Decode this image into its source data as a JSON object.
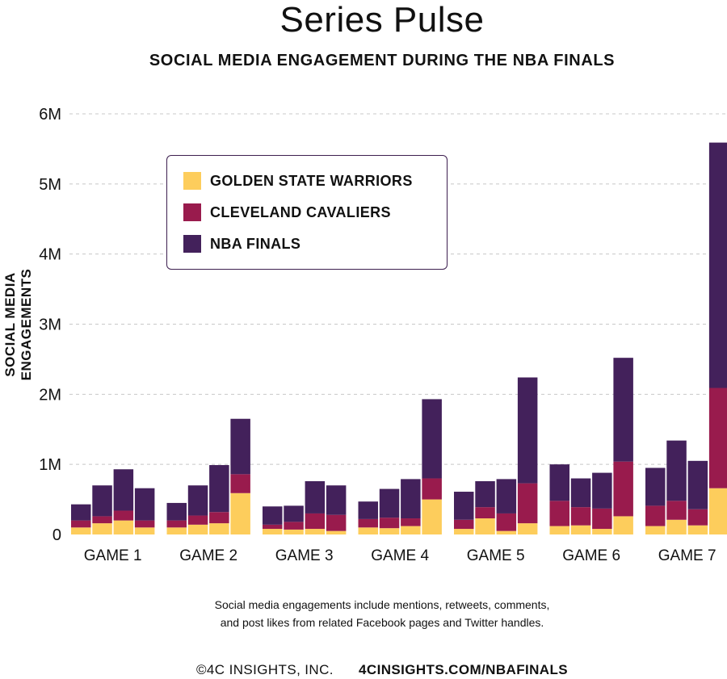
{
  "title": "Series Pulse",
  "subtitle": "SOCIAL MEDIA ENGAGEMENT DURING THE NBA FINALS",
  "footnote_line1": "Social media engagements include mentions, retweets, comments,",
  "footnote_line2": "and post likes from related Facebook pages and Twitter handles.",
  "footer": {
    "copyright": "©4C INSIGHTS, INC.",
    "site": "4CINSIGHTS.COM/NBAFINALS"
  },
  "colors": {
    "warriors": "#FDCD5C",
    "cavaliers": "#991B4D",
    "finals": "#43215B",
    "grid": "#C8C8C8",
    "legend_border": "#3D1F4F"
  },
  "chart_data": {
    "type": "bar",
    "stacked": true,
    "ylabel": "SOCIAL MEDIA ENGAGEMENTS",
    "xlabel": "",
    "ylim": [
      0,
      6000000
    ],
    "yticks": [
      {
        "value": 0,
        "label": "0"
      },
      {
        "value": 1000000,
        "label": "1M"
      },
      {
        "value": 2000000,
        "label": "2M"
      },
      {
        "value": 3000000,
        "label": "3M"
      },
      {
        "value": 4000000,
        "label": "4M"
      },
      {
        "value": 5000000,
        "label": "5M"
      },
      {
        "value": 6000000,
        "label": "6M"
      }
    ],
    "grid": true,
    "legend_position": "top-left",
    "categories": [
      "GAME 1",
      "GAME 2",
      "GAME 3",
      "GAME 4",
      "GAME 5",
      "GAME 6",
      "GAME 7"
    ],
    "bars_per_category": 4,
    "series": [
      {
        "name": "GOLDEN STATE WARRIORS",
        "color_key": "warriors",
        "values": [
          [
            100000,
            160000,
            200000,
            100000
          ],
          [
            100000,
            140000,
            160000,
            590000
          ],
          [
            80000,
            70000,
            80000,
            50000
          ],
          [
            100000,
            90000,
            120000,
            500000
          ],
          [
            80000,
            230000,
            50000,
            160000
          ],
          [
            120000,
            130000,
            80000,
            260000
          ],
          [
            120000,
            210000,
            130000,
            660000
          ]
        ]
      },
      {
        "name": "CLEVELAND CAVALIERS",
        "color_key": "cavaliers",
        "values": [
          [
            100000,
            100000,
            140000,
            100000
          ],
          [
            100000,
            130000,
            160000,
            270000
          ],
          [
            60000,
            110000,
            220000,
            230000
          ],
          [
            120000,
            150000,
            110000,
            300000
          ],
          [
            130000,
            160000,
            250000,
            570000
          ],
          [
            360000,
            260000,
            290000,
            780000
          ],
          [
            290000,
            270000,
            230000,
            1430000
          ]
        ]
      },
      {
        "name": "NBA FINALS",
        "color_key": "finals",
        "values": [
          [
            230000,
            440000,
            590000,
            460000
          ],
          [
            250000,
            430000,
            670000,
            790000
          ],
          [
            260000,
            230000,
            460000,
            420000
          ],
          [
            250000,
            410000,
            560000,
            1130000
          ],
          [
            400000,
            370000,
            490000,
            1510000
          ],
          [
            520000,
            410000,
            510000,
            1480000
          ],
          [
            540000,
            860000,
            690000,
            3500000
          ]
        ]
      }
    ]
  }
}
